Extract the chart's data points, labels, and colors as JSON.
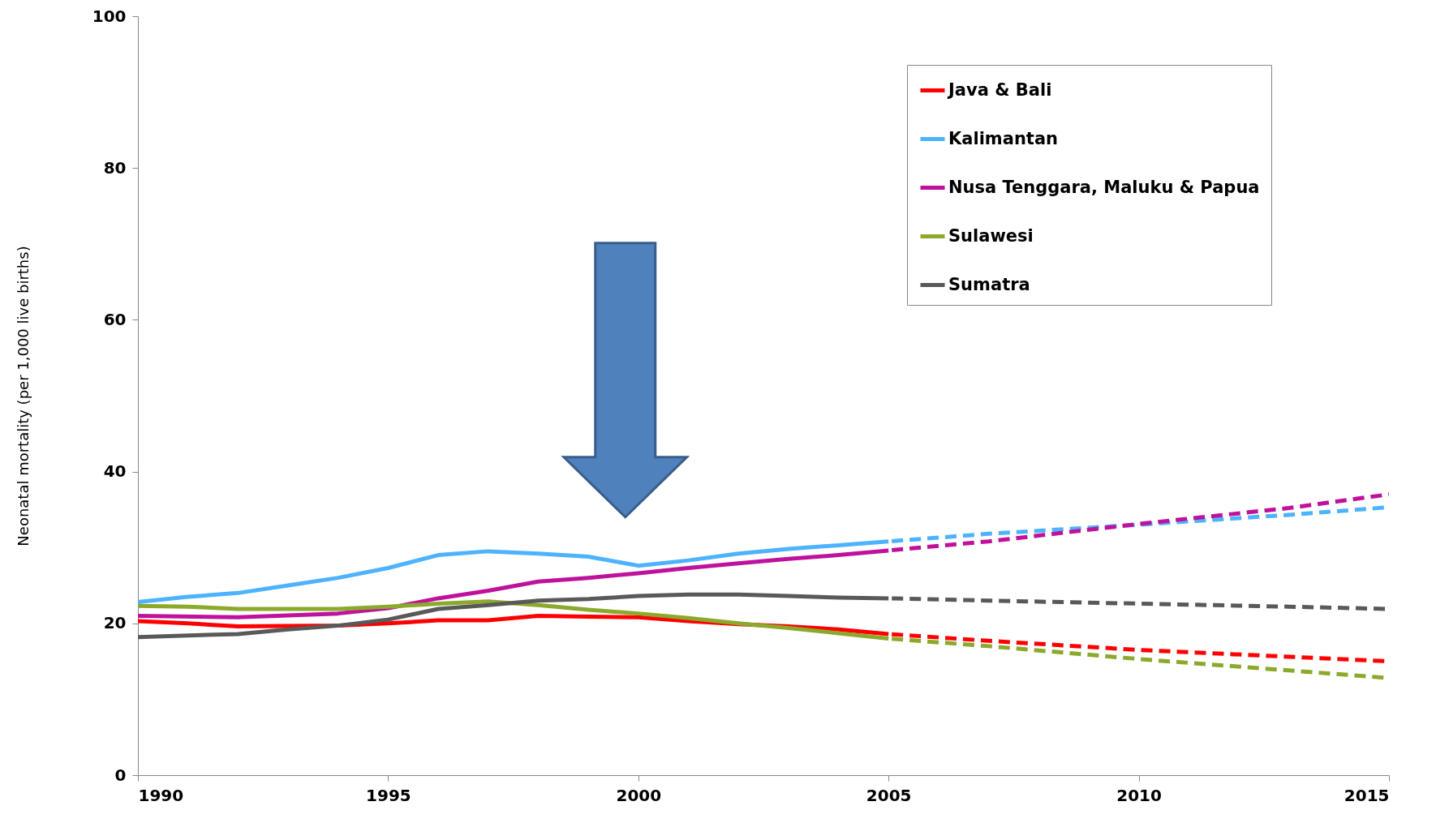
{
  "chart_data": {
    "type": "line",
    "ylabel": "Neonatal mortality (per 1,000 live births)",
    "xlim": [
      1990,
      2015
    ],
    "xticks": [
      1990,
      1995,
      2000,
      2005,
      2010,
      2015
    ],
    "ylim": [
      0,
      100
    ],
    "yticks": [
      0,
      20,
      40,
      60,
      80,
      100
    ],
    "grid": false,
    "legend": "top right",
    "marker": "none",
    "line_style": "solid",
    "series": [
      {
        "name": "Java & Bali",
        "color": "#ff0000",
        "x": [
          1990,
          1991,
          1992,
          1994,
          1995,
          1996,
          1997,
          1998,
          1999,
          2000,
          2001,
          2002,
          2003,
          2004,
          2005
        ],
        "values": [
          20.3,
          20,
          19.6,
          19.7,
          20,
          20.4,
          20.4,
          21,
          20.9,
          20.8,
          20.3,
          19.9,
          19.6,
          19.2,
          18.6
        ]
      },
      {
        "name": "Kalimantan",
        "color": "#4db3ff",
        "x": [
          1990,
          1991,
          1992,
          1993,
          1994,
          1995,
          1996,
          1997,
          1998,
          1999,
          2000,
          2001,
          2002,
          2003,
          2004,
          2005
        ],
        "values": [
          22.8,
          23.5,
          24,
          25,
          26,
          27.3,
          29,
          29.5,
          29.2,
          28.8,
          27.6,
          28.3,
          29.2,
          29.8,
          30.3,
          30.8
        ]
      },
      {
        "name": "Nusa Tenggara, Maluku & Papua",
        "color": "#c0119c",
        "x": [
          1990,
          1992,
          1994,
          1995,
          1996,
          1997,
          1998,
          1999,
          2000,
          2001,
          2002,
          2003,
          2004,
          2005
        ],
        "values": [
          21,
          20.8,
          21.3,
          22,
          23.3,
          24.3,
          25.5,
          26,
          26.6,
          27.3,
          27.9,
          28.5,
          29,
          29.6
        ]
      },
      {
        "name": "Sulawesi",
        "color": "#8ba92a",
        "x": [
          1990,
          1991,
          1992,
          1994,
          1995,
          1996,
          1997,
          1998,
          1999,
          2000,
          2001,
          2002,
          2003,
          2004,
          2005
        ],
        "values": [
          22.3,
          22.2,
          21.9,
          21.9,
          22.2,
          22.6,
          22.9,
          22.4,
          21.8,
          21.3,
          20.7,
          20,
          19.4,
          18.7,
          18
        ]
      },
      {
        "name": "Sumatra",
        "color": "#595959",
        "x": [
          1990,
          1991,
          1992,
          1993,
          1994,
          1995,
          1996,
          1997,
          1998,
          1999,
          2000,
          2001,
          2002,
          2003,
          2004,
          2005
        ],
        "values": [
          18.2,
          18.4,
          18.6,
          19.2,
          19.7,
          20.5,
          21.9,
          22.4,
          23,
          23.2,
          23.6,
          23.8,
          23.8,
          23.6,
          23.4,
          23.3
        ]
      },
      {
        "color": "#ff0000",
        "line_style": "dashed",
        "x": [
          2005,
          2007,
          2010,
          2013,
          2015
        ],
        "values": [
          18.6,
          17.7,
          16.5,
          15.6,
          15
        ]
      },
      {
        "color": "#4db3ff",
        "line_style": "dashed",
        "x": [
          2005,
          2007,
          2010,
          2013,
          2015
        ],
        "values": [
          30.8,
          31.8,
          33,
          34.3,
          35.3
        ]
      },
      {
        "color": "#c0119c",
        "line_style": "dashed",
        "x": [
          2005,
          2007,
          2010,
          2013,
          2015
        ],
        "values": [
          29.6,
          30.8,
          33.1,
          35.2,
          37
        ]
      },
      {
        "color": "#8ba92a",
        "line_style": "dashed",
        "x": [
          2005,
          2007,
          2010,
          2013,
          2015
        ],
        "values": [
          18,
          17,
          15.3,
          13.8,
          12.8
        ]
      },
      {
        "color": "#595959",
        "line_style": "dashed",
        "x": [
          2005,
          2007,
          2010,
          2013,
          2015
        ],
        "values": [
          23.3,
          23,
          22.6,
          22.2,
          21.9
        ]
      }
    ]
  }
}
